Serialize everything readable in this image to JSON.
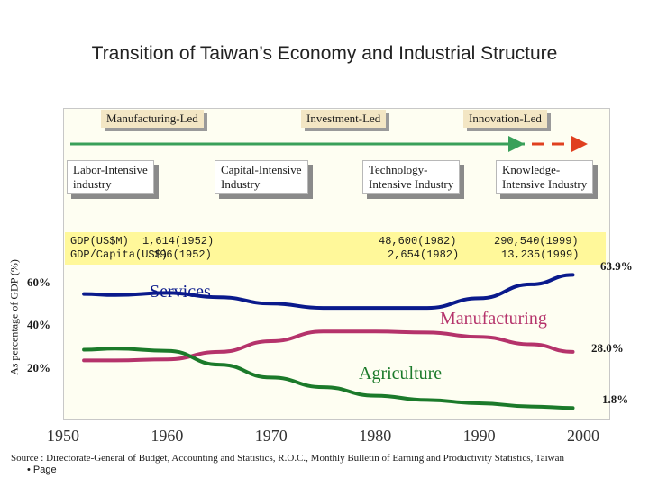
{
  "title": "Transition of Taiwan’s Economy and Industrial Structure",
  "phases": [
    "Manufacturing-Led",
    "Investment-Led",
    "Innovation-Led"
  ],
  "industry_types": [
    {
      "line1": "Labor-Intensive",
      "line2": "industry"
    },
    {
      "line1": "Capital-Intensive",
      "line2": "Industry"
    },
    {
      "line1": "Technology-",
      "line2": "Intensive Industry"
    },
    {
      "line1": "Knowledge-",
      "line2": "Intensive Industry"
    }
  ],
  "gdp": {
    "label_gdp": "GDP(US$M)",
    "label_capita": "GDP/Capita(US$)",
    "y1952_gdp": "1,614(1952)",
    "y1952_capita": "196(1952)",
    "y1982_gdp": "48,600(1982)",
    "y1982_capita": "2,654(1982)",
    "y1999_gdp": "290,540(1999)",
    "y1999_capita": "13,235(1999)"
  },
  "colors": {
    "services": "#0a1a8c",
    "manufacturing": "#b5336b",
    "agriculture": "#1b7a2a",
    "arrow_green": "#3aa05a",
    "arrow_red": "#e04020",
    "phase_box": "#f3e6c4",
    "band_yellow": "#fff89a"
  },
  "chart_data": {
    "type": "line",
    "title": "Transition of Taiwan’s Economy and Industrial Structure",
    "ylabel": "As percentage of GDP (%)",
    "xlabel": "",
    "xlim": [
      1950,
      2000
    ],
    "ylim": [
      0,
      85
    ],
    "x_ticks": [
      "1950",
      "1960",
      "1970",
      "1980",
      "1990",
      "2000"
    ],
    "y_ticks": [
      {
        "value": 20,
        "label": "20%"
      },
      {
        "value": 40,
        "label": "40%"
      },
      {
        "value": 60,
        "label": "60%"
      }
    ],
    "series": [
      {
        "name": "Services",
        "color": "#0a1a8c",
        "x": [
          1952,
          1955,
          1960,
          1965,
          1970,
          1975,
          1980,
          1985,
          1990,
          1995,
          1999
        ],
        "y": [
          55.0,
          54.5,
          55.5,
          53.5,
          50.5,
          48.5,
          48.5,
          48.5,
          53.0,
          59.5,
          63.9
        ],
        "end_label": "63.9%"
      },
      {
        "name": "Manufacturing",
        "color": "#b5336b",
        "x": [
          1952,
          1955,
          1960,
          1965,
          1970,
          1975,
          1980,
          1985,
          1990,
          1995,
          1999
        ],
        "y": [
          24.0,
          24.0,
          24.5,
          28.0,
          33.0,
          37.5,
          37.5,
          37.0,
          35.0,
          31.5,
          28.0
        ],
        "end_label": "28.0%"
      },
      {
        "name": "Agriculture",
        "color": "#1b7a2a",
        "x": [
          1952,
          1955,
          1960,
          1965,
          1970,
          1975,
          1980,
          1985,
          1990,
          1995,
          1999
        ],
        "y": [
          29.0,
          29.5,
          28.5,
          22.0,
          16.0,
          11.5,
          7.5,
          5.5,
          4.0,
          2.5,
          1.8
        ],
        "end_label": "1.8%"
      }
    ],
    "legend": "inline labels"
  },
  "source": "Source : Directorate-General of Budget, Accounting and Statistics, R.O.C., Monthly Bulletin of Earning and Productivity Statistics, Taiwan",
  "page_label": "• Page"
}
